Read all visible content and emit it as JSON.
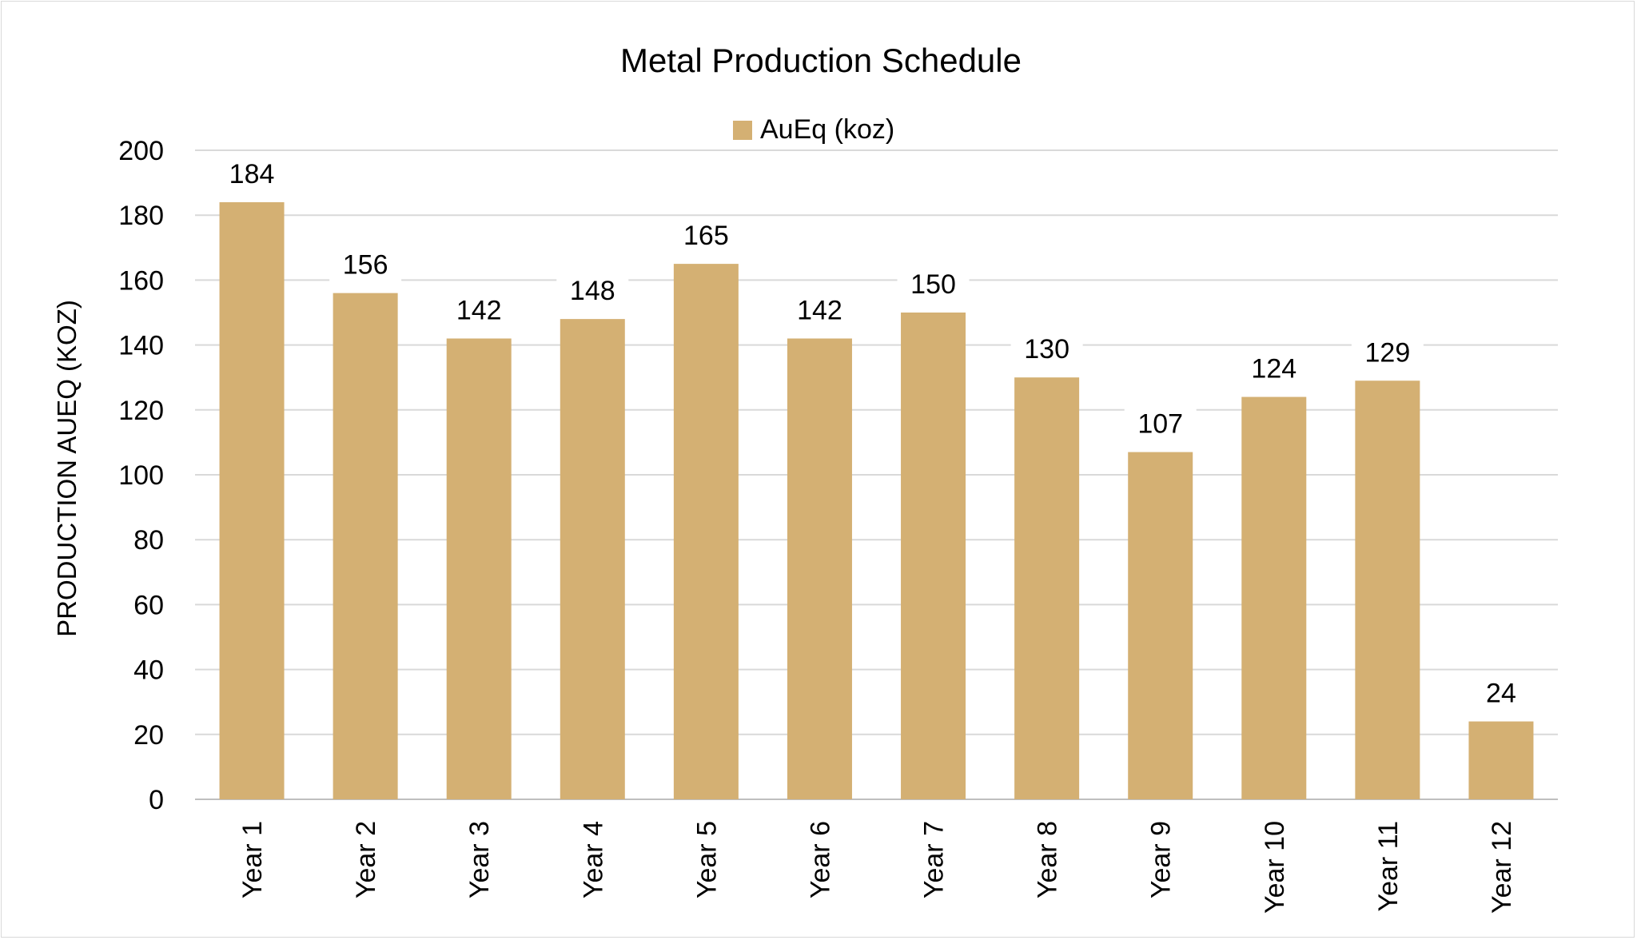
{
  "chart_data": {
    "type": "bar",
    "title": "Metal Production Schedule",
    "xlabel": "",
    "ylabel": "PRODUCTION AUEQ (KOZ)",
    "ylim": [
      0,
      200
    ],
    "yticks": [
      0,
      20,
      40,
      60,
      80,
      100,
      120,
      140,
      160,
      180,
      200
    ],
    "grid": true,
    "legend_position": "top",
    "categories": [
      "Year 1",
      "Year 2",
      "Year 3",
      "Year 4",
      "Year 5",
      "Year 6",
      "Year 7",
      "Year 8",
      "Year 9",
      "Year 10",
      "Year 11",
      "Year 12"
    ],
    "series": [
      {
        "name": "AuEq (koz)",
        "color": "#D4B073",
        "values": [
          184,
          156,
          142,
          148,
          165,
          142,
          150,
          130,
          107,
          124,
          129,
          24
        ]
      }
    ]
  }
}
